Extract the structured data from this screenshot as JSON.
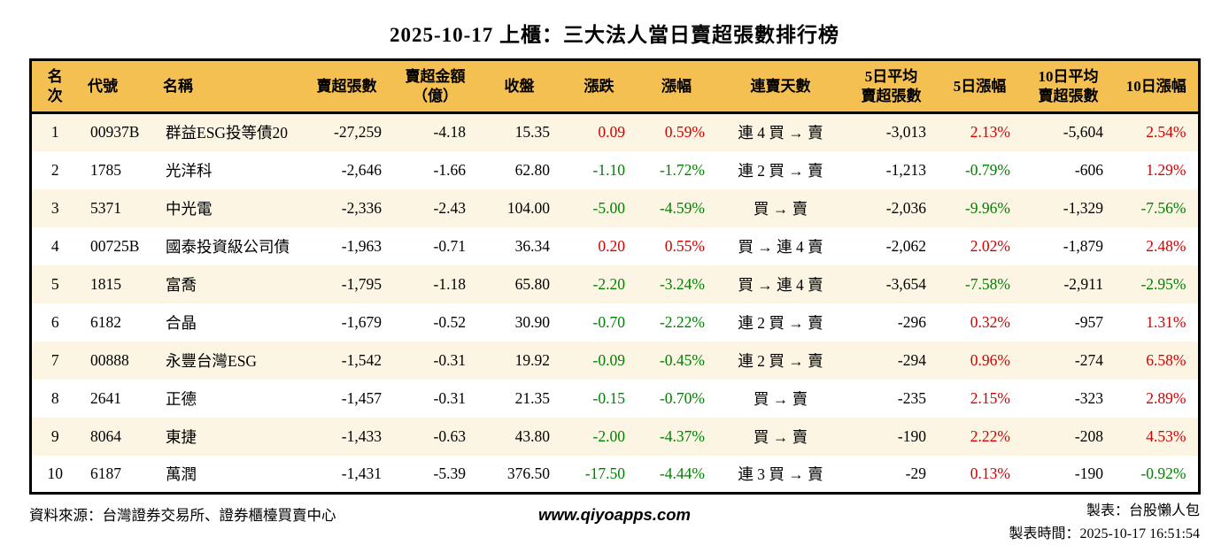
{
  "colors": {
    "header_bg": "#F5C052",
    "row_alt_bg": "#FCF5E4",
    "up_red": "#D40000",
    "down_green": "#008000",
    "border": "#000000"
  },
  "chart_data": {
    "type": "table",
    "title": "2025-10-17 上櫃：三大法人當日賣超張數排行榜",
    "columns": [
      {
        "key": "rank",
        "label": "名次",
        "align": "c"
      },
      {
        "key": "code",
        "label": "代號",
        "align": "l"
      },
      {
        "key": "name",
        "label": "名稱",
        "align": "l"
      },
      {
        "key": "sell-volume",
        "label": "賣超張數",
        "align": "r"
      },
      {
        "key": "sell-amount",
        "label": "賣超金額",
        "label2": "（億）",
        "align": "r"
      },
      {
        "key": "close",
        "label": "收盤",
        "align": "r"
      },
      {
        "key": "change",
        "label": "漲跌",
        "align": "r"
      },
      {
        "key": "change-pct",
        "label": "漲幅",
        "align": "r"
      },
      {
        "key": "streak",
        "label": "連賣天數",
        "align": "c"
      },
      {
        "key": "avg5-volume",
        "label": "5日平均",
        "label2": "賣超張數",
        "align": "r"
      },
      {
        "key": "pct5",
        "label": "5日漲幅",
        "align": "r"
      },
      {
        "key": "avg10-volume",
        "label": "10日平均",
        "label2": "賣超張數",
        "align": "r"
      },
      {
        "key": "pct10",
        "label": "10日漲幅",
        "align": "r"
      }
    ],
    "rows": [
      {
        "cells": [
          "1",
          "00937B",
          "群益ESG投等債20",
          "-27,259",
          "-4.18",
          "15.35",
          "0.09",
          "0.59%",
          "連 4 買 → 賣",
          "-3,013",
          "2.13%",
          "-5,604",
          "2.54%"
        ],
        "colors": [
          "k",
          "k",
          "k",
          "k",
          "k",
          "k",
          "r",
          "r",
          "k",
          "k",
          "r",
          "k",
          "r"
        ]
      },
      {
        "cells": [
          "2",
          "1785",
          "光洋科",
          "-2,646",
          "-1.66",
          "62.80",
          "-1.10",
          "-1.72%",
          "連 2 買 → 賣",
          "-1,213",
          "-0.79%",
          "-606",
          "1.29%"
        ],
        "colors": [
          "k",
          "k",
          "k",
          "k",
          "k",
          "k",
          "g",
          "g",
          "k",
          "k",
          "g",
          "k",
          "r"
        ]
      },
      {
        "cells": [
          "3",
          "5371",
          "中光電",
          "-2,336",
          "-2.43",
          "104.00",
          "-5.00",
          "-4.59%",
          "買 → 賣",
          "-2,036",
          "-9.96%",
          "-1,329",
          "-7.56%"
        ],
        "colors": [
          "k",
          "k",
          "k",
          "k",
          "k",
          "k",
          "g",
          "g",
          "k",
          "k",
          "g",
          "k",
          "g"
        ]
      },
      {
        "cells": [
          "4",
          "00725B",
          "國泰投資級公司債",
          "-1,963",
          "-0.71",
          "36.34",
          "0.20",
          "0.55%",
          "買 → 連 4 賣",
          "-2,062",
          "2.02%",
          "-1,879",
          "2.48%"
        ],
        "colors": [
          "k",
          "k",
          "k",
          "k",
          "k",
          "k",
          "r",
          "r",
          "k",
          "k",
          "r",
          "k",
          "r"
        ]
      },
      {
        "cells": [
          "5",
          "1815",
          "富喬",
          "-1,795",
          "-1.18",
          "65.80",
          "-2.20",
          "-3.24%",
          "買 → 連 4 賣",
          "-3,654",
          "-7.58%",
          "-2,911",
          "-2.95%"
        ],
        "colors": [
          "k",
          "k",
          "k",
          "k",
          "k",
          "k",
          "g",
          "g",
          "k",
          "k",
          "g",
          "k",
          "g"
        ]
      },
      {
        "cells": [
          "6",
          "6182",
          "合晶",
          "-1,679",
          "-0.52",
          "30.90",
          "-0.70",
          "-2.22%",
          "連 2 買 → 賣",
          "-296",
          "0.32%",
          "-957",
          "1.31%"
        ],
        "colors": [
          "k",
          "k",
          "k",
          "k",
          "k",
          "k",
          "g",
          "g",
          "k",
          "k",
          "r",
          "k",
          "r"
        ]
      },
      {
        "cells": [
          "7",
          "00888",
          "永豐台灣ESG",
          "-1,542",
          "-0.31",
          "19.92",
          "-0.09",
          "-0.45%",
          "連 2 買 → 賣",
          "-294",
          "0.96%",
          "-274",
          "6.58%"
        ],
        "colors": [
          "k",
          "k",
          "k",
          "k",
          "k",
          "k",
          "g",
          "g",
          "k",
          "k",
          "r",
          "k",
          "r"
        ]
      },
      {
        "cells": [
          "8",
          "2641",
          "正德",
          "-1,457",
          "-0.31",
          "21.35",
          "-0.15",
          "-0.70%",
          "買 → 賣",
          "-235",
          "2.15%",
          "-323",
          "2.89%"
        ],
        "colors": [
          "k",
          "k",
          "k",
          "k",
          "k",
          "k",
          "g",
          "g",
          "k",
          "k",
          "r",
          "k",
          "r"
        ]
      },
      {
        "cells": [
          "9",
          "8064",
          "東捷",
          "-1,433",
          "-0.63",
          "43.80",
          "-2.00",
          "-4.37%",
          "買 → 賣",
          "-190",
          "2.22%",
          "-208",
          "4.53%"
        ],
        "colors": [
          "k",
          "k",
          "k",
          "k",
          "k",
          "k",
          "g",
          "g",
          "k",
          "k",
          "r",
          "k",
          "r"
        ]
      },
      {
        "cells": [
          "10",
          "6187",
          "萬潤",
          "-1,431",
          "-5.39",
          "376.50",
          "-17.50",
          "-4.44%",
          "連 3 買 → 賣",
          "-29",
          "0.13%",
          "-190",
          "-0.92%"
        ],
        "colors": [
          "k",
          "k",
          "k",
          "k",
          "k",
          "k",
          "g",
          "g",
          "k",
          "k",
          "r",
          "k",
          "g"
        ]
      }
    ]
  },
  "footer": {
    "source": "資料來源：台灣證券交易所、證券櫃檯買賣中心",
    "website": "www.qiyoapps.com",
    "maker": "製表：台股懶人包",
    "time": "製表時間：2025-10-17 16:51:54"
  }
}
